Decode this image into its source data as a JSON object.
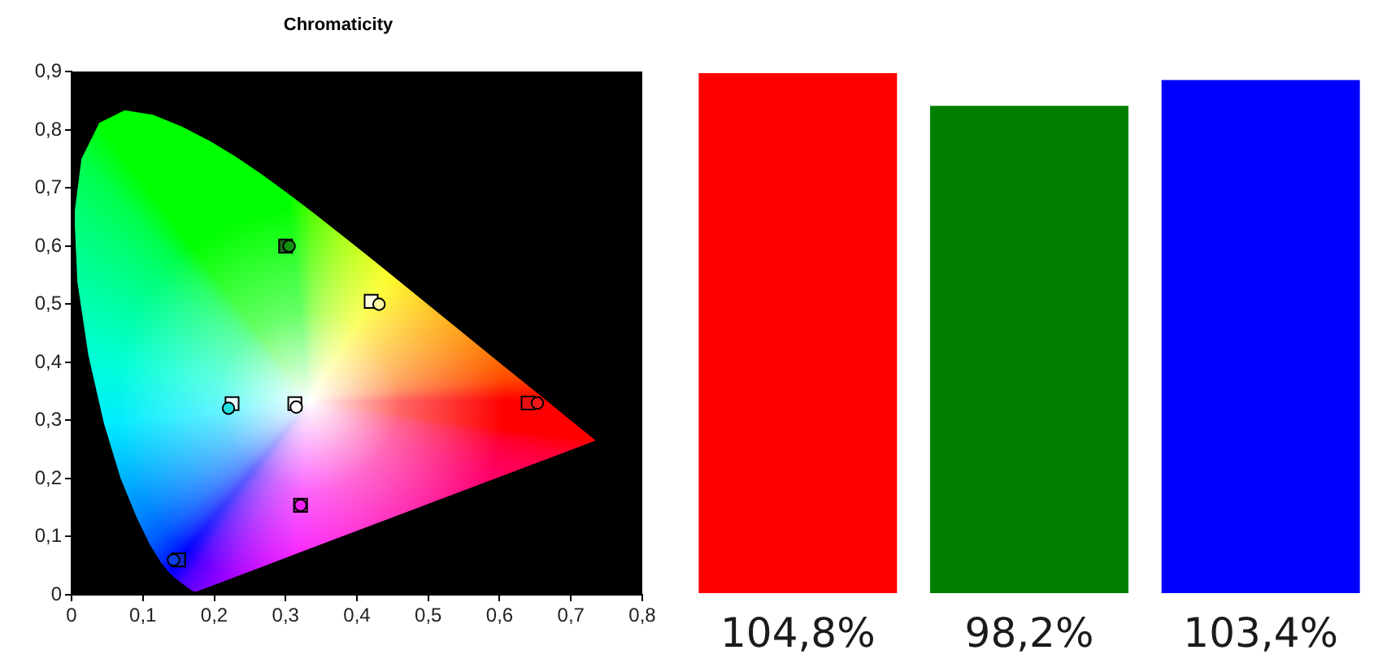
{
  "chart_data": [
    {
      "type": "scatter",
      "title": "Chromaticity",
      "xlim": [
        0,
        0.8
      ],
      "ylim": [
        0,
        0.9
      ],
      "xticks": [
        0,
        {
          "value": 0.1,
          "label": "0,1"
        },
        {
          "value": 0.2,
          "label": "0,2"
        },
        {
          "value": 0.3,
          "label": "0,3"
        },
        {
          "value": 0.4,
          "label": "0,4"
        },
        {
          "value": 0.5,
          "label": "0,5"
        },
        {
          "value": 0.6,
          "label": "0,6"
        },
        {
          "value": 0.7,
          "label": "0,7"
        },
        {
          "value": 0.8,
          "label": "0,8"
        }
      ],
      "yticks": [
        0,
        {
          "value": 0.1,
          "label": "0,1"
        },
        {
          "value": 0.2,
          "label": "0,2"
        },
        {
          "value": 0.3,
          "label": "0,3"
        },
        {
          "value": 0.4,
          "label": "0,4"
        },
        {
          "value": 0.5,
          "label": "0,5"
        },
        {
          "value": 0.6,
          "label": "0,6"
        },
        {
          "value": 0.7,
          "label": "0,7"
        },
        {
          "value": 0.8,
          "label": "0,8"
        },
        {
          "value": 0.9,
          "label": "0,9"
        }
      ],
      "grid": false,
      "legend": false,
      "series": [
        {
          "marker": "square",
          "x": [
            0.3,
            0.42,
            0.225,
            0.313,
            0.64,
            0.321,
            0.15
          ],
          "values": [
            0.6,
            0.505,
            0.329,
            0.329,
            0.33,
            0.154,
            0.06
          ],
          "colors": [
            "#1d5e1d",
            "#fffde0",
            "#e8ffff",
            "#ffffff",
            "#e81010",
            "#e030c8",
            "#1428c8"
          ]
        },
        {
          "marker": "circle",
          "x": [
            0.305,
            0.431,
            0.22,
            0.315,
            0.653,
            0.321,
            0.143
          ],
          "values": [
            0.6,
            0.5,
            0.321,
            0.323,
            0.33,
            0.154,
            0.06
          ],
          "colors": [
            "#109010",
            "#fff8a0",
            "#20e0e0",
            "#ffffff",
            "#f01818",
            "#f020f0",
            "#1040e8"
          ]
        }
      ]
    },
    {
      "type": "bar",
      "categories": [
        null,
        null,
        null
      ],
      "values": [
        104.8,
        98.2,
        103.4
      ],
      "colors": [
        "#ff0000",
        "#007f00",
        "#0000ff"
      ],
      "value_labels": [
        "104,8%",
        "98,2%",
        "103,4%"
      ],
      "tick_labels": false
    }
  ]
}
